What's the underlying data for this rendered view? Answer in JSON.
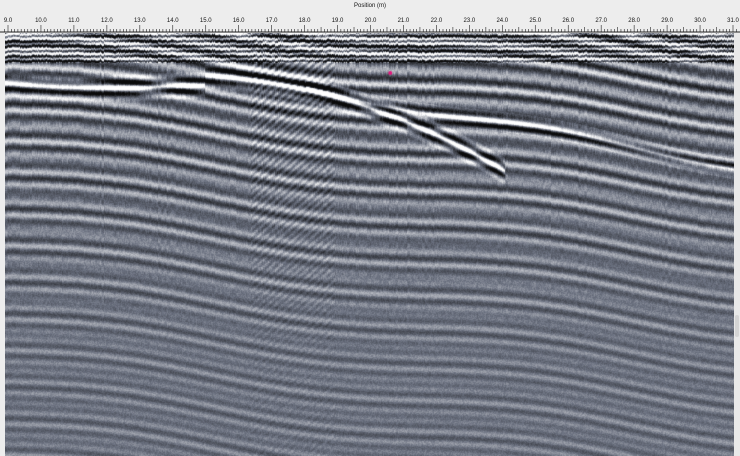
{
  "axis": {
    "title": "Position (m)",
    "start": 9.0,
    "end": 31.0,
    "tick_labels": [
      "9.0",
      "10.0",
      "11.0",
      "12.0",
      "13.0",
      "14.0",
      "15.0",
      "16.0",
      "17.0",
      "18.0",
      "19.0",
      "20.0",
      "21.0",
      "22.0",
      "23.0",
      "24.0",
      "25.0",
      "26.0",
      "27.0",
      "28.0",
      "29.0",
      "30.0",
      "31.0"
    ]
  },
  "colors": {
    "background": "#ededed",
    "signal_dark": "#0a0a0a",
    "signal_light": "#ffffff",
    "signal_mid": "#6b7180",
    "marker": "#e0177a"
  },
  "radargram": {
    "marker_position_m": 20.6,
    "image_kind": "grayscale-wiggle-section"
  }
}
